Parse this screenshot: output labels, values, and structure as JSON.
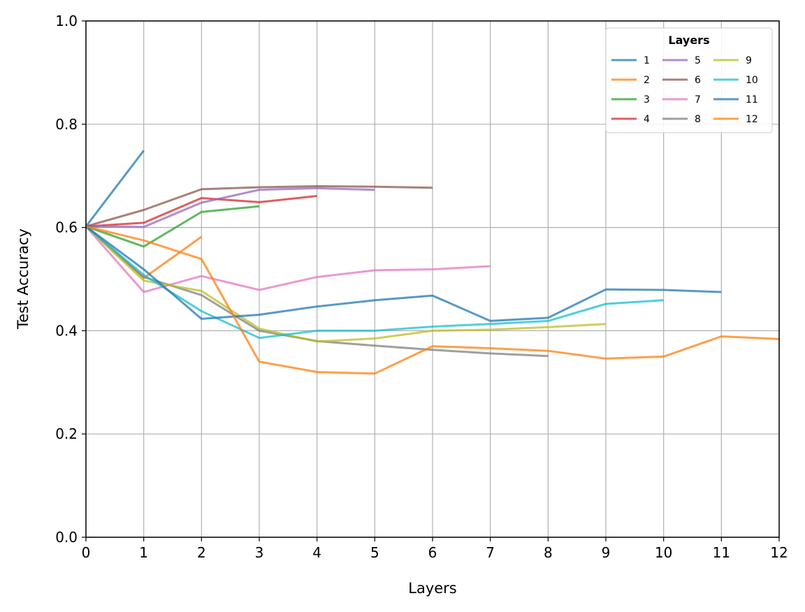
{
  "chart_data": {
    "type": "line",
    "title": "",
    "xlabel": "Layers",
    "ylabel": "Test Accuracy",
    "xlim": [
      0,
      12
    ],
    "ylim": [
      0,
      1.0
    ],
    "xticks": [
      "0",
      "1",
      "2",
      "3",
      "4",
      "5",
      "6",
      "7",
      "8",
      "9",
      "10",
      "11",
      "12"
    ],
    "yticks": [
      "0.0",
      "0.2",
      "0.4",
      "0.6",
      "0.8",
      "1.0"
    ],
    "grid": true,
    "legend": {
      "title": "Layers",
      "placement": "top-right",
      "columns": 3
    },
    "series": [
      {
        "name": "1",
        "color": "#1f77b4",
        "x": [
          0,
          1
        ],
        "y": [
          0.602,
          0.749
        ]
      },
      {
        "name": "2",
        "color": "#ff7f0e",
        "x": [
          0,
          1,
          2
        ],
        "y": [
          0.602,
          0.502,
          0.582
        ]
      },
      {
        "name": "3",
        "color": "#2ca02c",
        "x": [
          0,
          1,
          2,
          3
        ],
        "y": [
          0.602,
          0.563,
          0.63,
          0.641
        ]
      },
      {
        "name": "4",
        "color": "#d62728",
        "x": [
          0,
          1,
          2,
          3,
          4
        ],
        "y": [
          0.602,
          0.609,
          0.657,
          0.649,
          0.661
        ]
      },
      {
        "name": "5",
        "color": "#9467bd",
        "x": [
          0,
          1,
          2,
          3,
          4,
          5
        ],
        "y": [
          0.602,
          0.601,
          0.648,
          0.673,
          0.676,
          0.673
        ]
      },
      {
        "name": "6",
        "color": "#8c564b",
        "x": [
          0,
          1,
          2,
          3,
          4,
          5,
          6
        ],
        "y": [
          0.602,
          0.634,
          0.674,
          0.678,
          0.68,
          0.679,
          0.677
        ]
      },
      {
        "name": "7",
        "color": "#e377c2",
        "x": [
          0,
          1,
          2,
          3,
          4,
          5,
          6,
          7
        ],
        "y": [
          0.602,
          0.475,
          0.506,
          0.479,
          0.504,
          0.517,
          0.519,
          0.525
        ]
      },
      {
        "name": "8",
        "color": "#7f7f7f",
        "x": [
          0,
          1,
          2,
          3,
          4,
          5,
          6,
          7,
          8
        ],
        "y": [
          0.602,
          0.504,
          0.469,
          0.4,
          0.38,
          0.371,
          0.363,
          0.356,
          0.351
        ]
      },
      {
        "name": "9",
        "color": "#bcbd22",
        "x": [
          0,
          1,
          2,
          3,
          4,
          5,
          6,
          7,
          8,
          9
        ],
        "y": [
          0.602,
          0.497,
          0.477,
          0.404,
          0.379,
          0.385,
          0.4,
          0.402,
          0.407,
          0.413
        ]
      },
      {
        "name": "10",
        "color": "#17becf",
        "x": [
          0,
          1,
          2,
          3,
          4,
          5,
          6,
          7,
          8,
          9,
          10
        ],
        "y": [
          0.602,
          0.508,
          0.438,
          0.386,
          0.4,
          0.4,
          0.408,
          0.413,
          0.419,
          0.452,
          0.459
        ]
      },
      {
        "name": "11",
        "color": "#1f77b4",
        "x": [
          0,
          1,
          2,
          3,
          4,
          5,
          6,
          7,
          8,
          9,
          10,
          11
        ],
        "y": [
          0.602,
          0.519,
          0.423,
          0.431,
          0.447,
          0.459,
          0.468,
          0.419,
          0.425,
          0.48,
          0.479,
          0.475
        ]
      },
      {
        "name": "12",
        "color": "#ff7f0e",
        "x": [
          0,
          1,
          2,
          3,
          4,
          5,
          6,
          7,
          8,
          9,
          10,
          11,
          12
        ],
        "y": [
          0.602,
          0.575,
          0.539,
          0.34,
          0.32,
          0.317,
          0.37,
          0.366,
          0.361,
          0.346,
          0.35,
          0.389,
          0.384
        ]
      }
    ]
  }
}
